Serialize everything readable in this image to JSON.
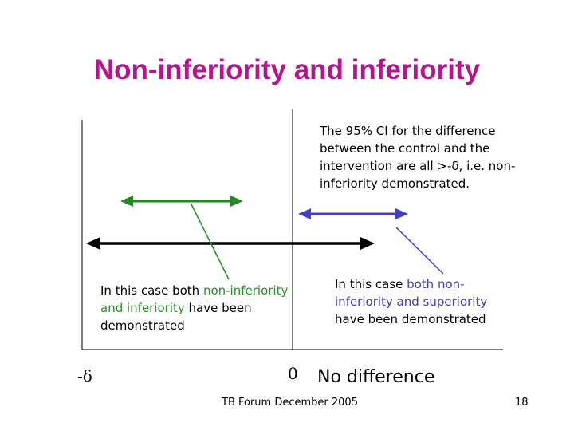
{
  "slide": {
    "title": "Non-inferiority and inferiority",
    "footer": "TB Forum December 2005",
    "page_number": "18"
  },
  "annotations": {
    "top_note": "The 95% CI for the difference between the control and the intervention are all >-δ, i.e. non-inferiority demonstrated.",
    "left_note": {
      "prefix": "In this case both ",
      "highlight": "non-inferiority and inferiority",
      "suffix": " have been demonstrated"
    },
    "right_note": {
      "prefix": "In this case ",
      "highlight": "both non-inferiority and superiority",
      "suffix": " have been demonstrated"
    }
  },
  "axis": {
    "delta_label": "-δ",
    "zero_label": "0",
    "no_difference_label": "No difference"
  },
  "colors": {
    "title": "#b5168e",
    "green": "#1f8a1f",
    "blue": "#4040c0",
    "black": "#000000"
  },
  "confidence_intervals": [
    {
      "name": "green-interval",
      "color": "green"
    },
    {
      "name": "black-interval",
      "color": "black"
    },
    {
      "name": "blue-interval",
      "color": "blue"
    }
  ]
}
